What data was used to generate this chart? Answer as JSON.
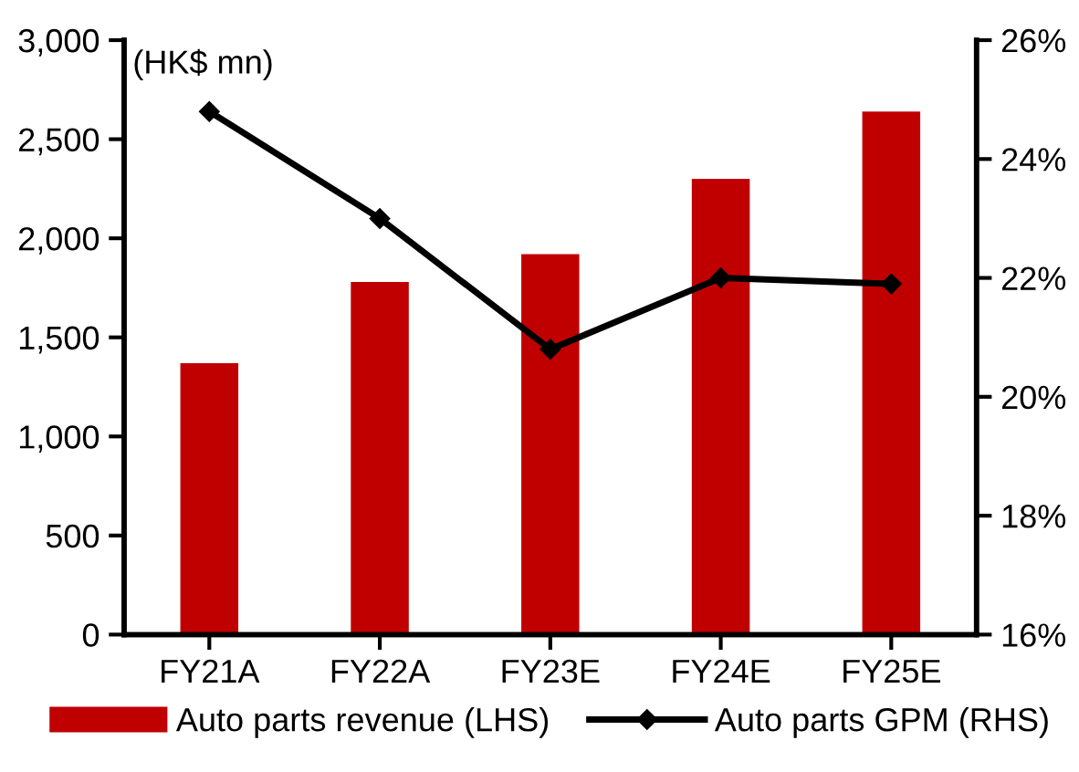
{
  "chart_data": {
    "type": "bar",
    "categories": [
      "FY21A",
      "FY22A",
      "FY23E",
      "FY24E",
      "FY25E"
    ],
    "series": [
      {
        "name": "Auto parts revenue (LHS)",
        "color": "#c00000",
        "values": [
          1370,
          1780,
          1920,
          2300,
          2640
        ]
      },
      {
        "name": "Auto parts GPM (RHS)",
        "type": "line",
        "axis": "y2",
        "color": "#000000",
        "marker": "diamond",
        "values": [
          24.8,
          23.0,
          20.8,
          22.0,
          21.9
        ]
      }
    ],
    "ylim": [
      0,
      3000
    ],
    "yticks": [
      {
        "value": 0,
        "label": "0"
      },
      {
        "value": 500,
        "label": "500"
      },
      {
        "value": 1000,
        "label": "1,000"
      },
      {
        "value": 1500,
        "label": "1,500"
      },
      {
        "value": 2000,
        "label": "2,000"
      },
      {
        "value": 2500,
        "label": "2,500"
      },
      {
        "value": 3000,
        "label": "3,000"
      }
    ],
    "y2lim": [
      16,
      26
    ],
    "y2ticks": [
      {
        "value": 16,
        "label": "16%"
      },
      {
        "value": 18,
        "label": "18%"
      },
      {
        "value": 20,
        "label": "20%"
      },
      {
        "value": 22,
        "label": "22%"
      },
      {
        "value": 24,
        "label": "24%"
      },
      {
        "value": 26,
        "label": "26%"
      }
    ],
    "annotations": [
      "(HK$ mn)"
    ],
    "legend": "bottom",
    "grid": false
  }
}
